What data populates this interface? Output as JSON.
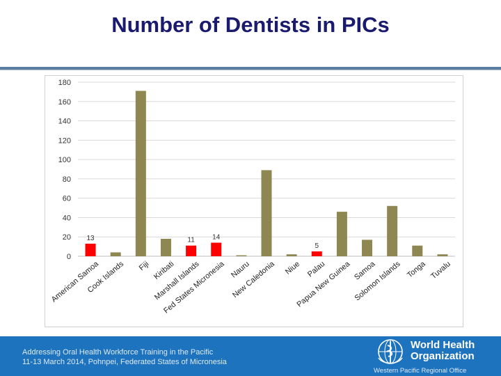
{
  "slide": {
    "title": "Number of Dentists in PICs"
  },
  "chart_data": {
    "type": "bar",
    "categories": [
      "American Samoa",
      "Cook Islands",
      "Fiji",
      "Kiribati",
      "Marshall Islands",
      "Fed States Micronesia",
      "Nauru",
      "New Caledonia",
      "Niue",
      "Palau",
      "Papua New Guinea",
      "Samoa",
      "Solomon Islands",
      "Tonga",
      "Tuvalu"
    ],
    "values": [
      13,
      4,
      171,
      18,
      11,
      14,
      1,
      89,
      2,
      5,
      46,
      17,
      52,
      11,
      2
    ],
    "highlight": [
      true,
      false,
      false,
      false,
      true,
      true,
      false,
      false,
      false,
      true,
      false,
      false,
      false,
      false,
      false
    ],
    "data_labels": [
      "13",
      "",
      "",
      "",
      "11",
      "14",
      "",
      "",
      "",
      "5",
      "",
      "",
      "",
      "",
      ""
    ],
    "ylim": [
      0,
      180
    ],
    "yticks": [
      "0",
      "20",
      "40",
      "60",
      "80",
      "100",
      "120",
      "140",
      "160",
      "180"
    ],
    "grid": true,
    "colors": {
      "default": "#8f8752",
      "highlight": "#ff0000"
    }
  },
  "footer": {
    "line1": "Addressing Oral Health Workforce Training in the Pacific",
    "line2": "11-13 March 2014, Pohnpei, Federated States of Micronesia",
    "org_line1": "World Health",
    "org_line2": "Organization",
    "office": "Western Pacific Regional Office",
    "color": "#1e73be"
  }
}
